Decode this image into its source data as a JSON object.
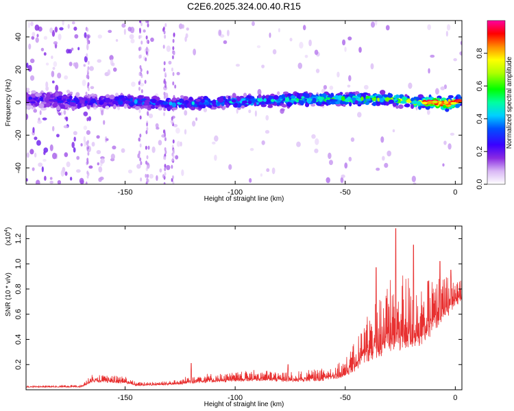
{
  "title": "C2E6.2025.324.00.40.R15",
  "chart_data": [
    {
      "type": "heatmap",
      "xlabel": "Height of straight line (km)",
      "ylabel": "Frequency (Hz)",
      "xlim": [
        -195,
        3
      ],
      "ylim": [
        -50,
        50
      ],
      "xticks": [
        -150,
        -100,
        -50,
        0
      ],
      "yticks": [
        -40,
        -20,
        0,
        20,
        40
      ],
      "grid": false,
      "colorbar": {
        "label": "Normalized spectral amplitude",
        "range": [
          0,
          1
        ],
        "ticks": [
          "0.0",
          "0.2",
          "0.4",
          "0.6",
          "0.8"
        ]
      },
      "ridge": [
        {
          "x": -190,
          "y": 2,
          "amp": 0.25
        },
        {
          "x": -170,
          "y": 0,
          "amp": 0.3
        },
        {
          "x": -150,
          "y": 1,
          "amp": 0.35
        },
        {
          "x": -130,
          "y": -1,
          "amp": 0.38
        },
        {
          "x": -110,
          "y": 0,
          "amp": 0.42
        },
        {
          "x": -90,
          "y": 1,
          "amp": 0.48
        },
        {
          "x": -70,
          "y": 2,
          "amp": 0.52
        },
        {
          "x": -50,
          "y": 2,
          "amp": 0.58
        },
        {
          "x": -30,
          "y": 2,
          "amp": 0.62
        },
        {
          "x": -15,
          "y": 0,
          "amp": 0.75
        },
        {
          "x": -8,
          "y": 0,
          "amp": 0.9
        },
        {
          "x": -3,
          "y": -1,
          "amp": 1.0
        },
        {
          "x": 2,
          "y": 1,
          "amp": 0.6
        }
      ]
    },
    {
      "type": "line",
      "xlabel": "Height of straight line (km)",
      "ylabel": "SNR (10 * v/v)",
      "yscale_label": "(x10",
      "yscale_exp": "4",
      "yscale_close": ")",
      "xlim": [
        -195,
        3
      ],
      "ylim": [
        0,
        1.3
      ],
      "xticks": [
        -150,
        -100,
        -50,
        0
      ],
      "yticks": [
        0.2,
        0.4,
        0.6,
        0.8,
        1.0,
        1.2
      ],
      "grid": false,
      "color": "#e83030",
      "envelope": [
        {
          "x": -195,
          "base": 0.02,
          "spread": 0.01
        },
        {
          "x": -170,
          "base": 0.02,
          "spread": 0.02
        },
        {
          "x": -165,
          "base": 0.06,
          "spread": 0.06
        },
        {
          "x": -150,
          "base": 0.05,
          "spread": 0.06
        },
        {
          "x": -145,
          "base": 0.03,
          "spread": 0.03
        },
        {
          "x": -125,
          "base": 0.04,
          "spread": 0.04
        },
        {
          "x": -120,
          "base": 0.05,
          "spread": 0.08
        },
        {
          "x": -105,
          "base": 0.06,
          "spread": 0.07
        },
        {
          "x": -90,
          "base": 0.07,
          "spread": 0.09
        },
        {
          "x": -75,
          "base": 0.06,
          "spread": 0.08
        },
        {
          "x": -60,
          "base": 0.07,
          "spread": 0.1
        },
        {
          "x": -50,
          "base": 0.1,
          "spread": 0.15
        },
        {
          "x": -45,
          "base": 0.15,
          "spread": 0.25
        },
        {
          "x": -40,
          "base": 0.22,
          "spread": 0.4
        },
        {
          "x": -35,
          "base": 0.25,
          "spread": 0.5
        },
        {
          "x": -30,
          "base": 0.28,
          "spread": 0.6
        },
        {
          "x": -25,
          "base": 0.3,
          "spread": 0.65
        },
        {
          "x": -20,
          "base": 0.32,
          "spread": 0.6
        },
        {
          "x": -15,
          "base": 0.35,
          "spread": 0.5
        },
        {
          "x": -10,
          "base": 0.45,
          "spread": 0.45
        },
        {
          "x": -5,
          "base": 0.55,
          "spread": 0.35
        },
        {
          "x": 0,
          "base": 0.65,
          "spread": 0.25
        },
        {
          "x": 3,
          "base": 0.72,
          "spread": 0.2
        }
      ],
      "peaks": [
        {
          "x": -27,
          "y": 1.28
        },
        {
          "x": -19,
          "y": 1.15
        },
        {
          "x": -36,
          "y": 0.97
        },
        {
          "x": -7,
          "y": 1.02
        },
        {
          "x": -2,
          "y": 0.95
        },
        {
          "x": -120,
          "y": 0.21
        },
        {
          "x": -76,
          "y": 0.2
        }
      ]
    }
  ]
}
